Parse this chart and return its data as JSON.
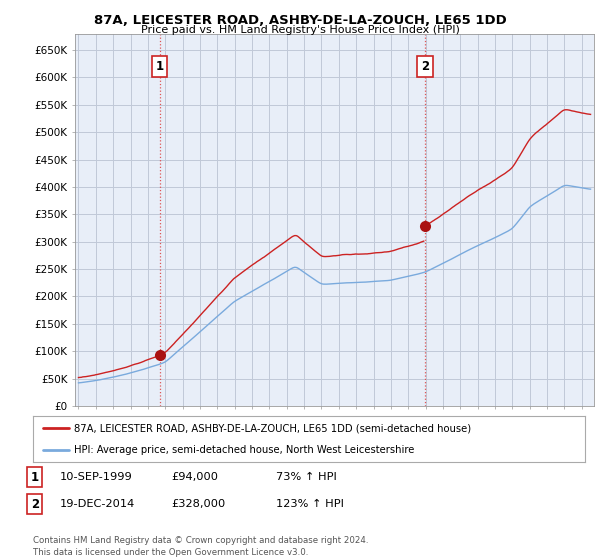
{
  "title": "87A, LEICESTER ROAD, ASHBY-DE-LA-ZOUCH, LE65 1DD",
  "subtitle": "Price paid vs. HM Land Registry's House Price Index (HPI)",
  "hpi_color": "#7aaadd",
  "price_color": "#cc2222",
  "marker_color": "#aa1111",
  "chart_bg": "#e8eef8",
  "background_color": "#ffffff",
  "grid_color": "#c0c8d8",
  "ylim": [
    0,
    680000
  ],
  "yticks": [
    0,
    50000,
    100000,
    150000,
    200000,
    250000,
    300000,
    350000,
    400000,
    450000,
    500000,
    550000,
    600000,
    650000
  ],
  "ytick_labels": [
    "£0",
    "£50K",
    "£100K",
    "£150K",
    "£200K",
    "£250K",
    "£300K",
    "£350K",
    "£400K",
    "£450K",
    "£500K",
    "£550K",
    "£600K",
    "£650K"
  ],
  "sale1_date_x": 1999.69,
  "sale1_price": 94000,
  "sale1_label": "1",
  "sale2_date_x": 2014.96,
  "sale2_price": 328000,
  "sale2_label": "2",
  "vline_color": "#dd4444",
  "legend_line1": "87A, LEICESTER ROAD, ASHBY-DE-LA-ZOUCH, LE65 1DD (semi-detached house)",
  "legend_line2": "HPI: Average price, semi-detached house, North West Leicestershire",
  "footer": "Contains HM Land Registry data © Crown copyright and database right 2024.\nThis data is licensed under the Open Government Licence v3.0.",
  "xmin": 1994.8,
  "xmax": 2024.7
}
